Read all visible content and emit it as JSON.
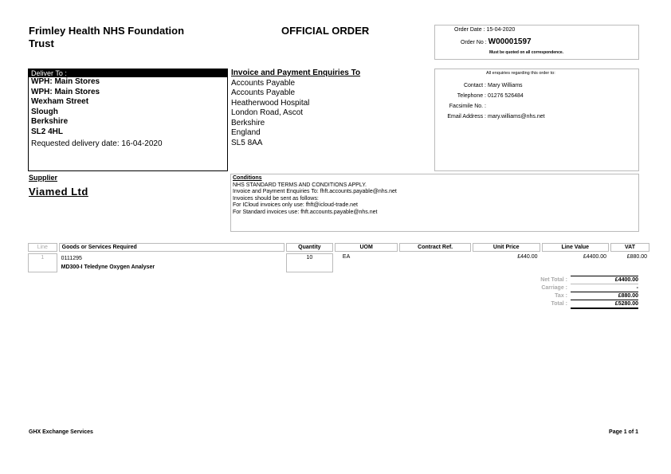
{
  "org": {
    "title_line1": "Frimley Health NHS Foundation",
    "title_line2": "Trust"
  },
  "doc_title": "OFFICIAL ORDER",
  "order": {
    "date_label": "Order Date :",
    "date": "15-04-2020",
    "no_label": "Order No :",
    "no": "W00001597",
    "quote_note": "Must be quoted on all correspondence."
  },
  "deliver": {
    "header": "Deliver To :",
    "lines": [
      "WPH: Main Stores",
      "WPH: Main Stores",
      "Wexham Street",
      "Slough",
      "Berkshire",
      "SL2 4HL"
    ],
    "requested": "Requested delivery date: 16-04-2020"
  },
  "invoice": {
    "header": "Invoice and Payment Enquiries To",
    "lines": [
      "Accounts Payable",
      "Accounts Payable",
      "Heatherwood Hospital",
      "London Road, Ascot",
      "Berkshire",
      "England",
      "SL5 8AA"
    ]
  },
  "enquiries": {
    "header": "All enquiries regarding this order to:",
    "contact_label": "Contact :",
    "contact": "Mary Williams",
    "telephone_label": "Telephone :",
    "telephone": "01276 526484",
    "fax_label": "Facsimile No. :",
    "fax": "",
    "email_label": "Email Address :",
    "email": "mary.williams@nhs.net"
  },
  "supplier": {
    "label": "Supplier",
    "name": "Viamed Ltd"
  },
  "conditions": {
    "header": "Conditions",
    "lines": [
      "NHS STANDARD TERMS AND CONDITIONS APPLY.",
      "Invoice and Payment Enquiries To: fhft.accounts.payable@nhs.net",
      "Invoices should be sent as follows:",
      "For ICloud invoices only use: fhft@icloud-trade.net",
      "For Standard invoices use: fhft.accounts.payable@nhs.net"
    ]
  },
  "table": {
    "headers": [
      "Line",
      "Goods or Services Required",
      "Quantity",
      "UOM",
      "Contract Ref.",
      "Unit Price",
      "Line Value",
      "VAT"
    ],
    "rows": [
      {
        "line": "1",
        "code": "0111295",
        "description": "MD300-I Teledyne Oxygen Analyser",
        "quantity": "10",
        "uom": "EA",
        "contract_ref": "",
        "unit_price": "£440.00",
        "line_value": "£4400.00",
        "vat": "£880.00"
      }
    ]
  },
  "totals": {
    "net_label": "Net Total :",
    "net": "£4400.00",
    "carriage_label": "Carriage :",
    "carriage": "-",
    "tax_label": "Tax :",
    "tax": "£880.00",
    "total_label": "Total :",
    "total": "£5280.00"
  },
  "footer": {
    "left": "GHX Exchange Services",
    "right": "Page 1 of 1"
  }
}
